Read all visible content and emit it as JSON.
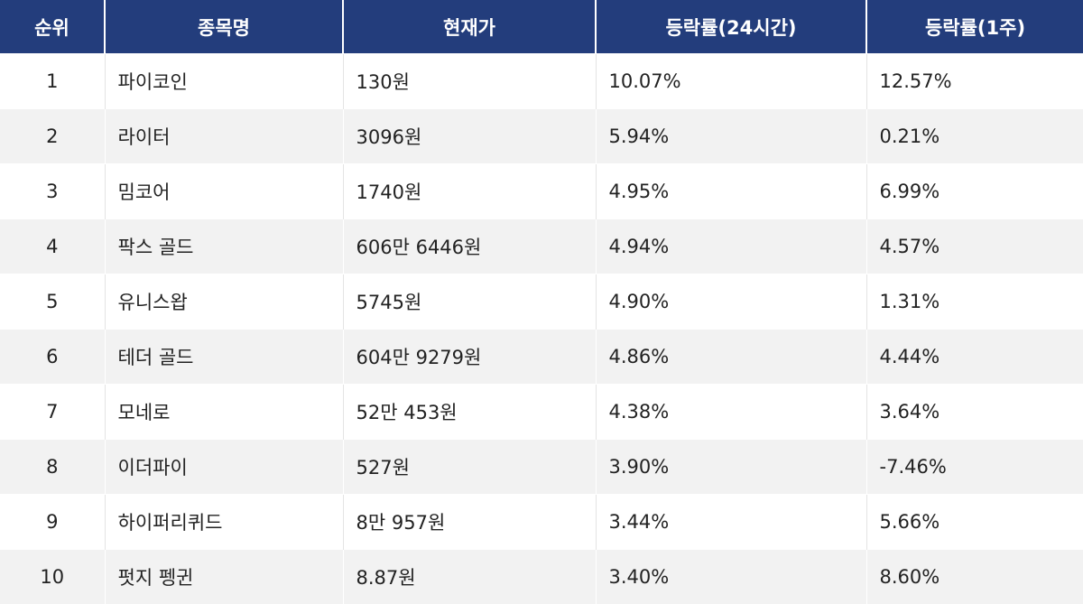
{
  "table": {
    "headers": [
      "순위",
      "종목명",
      "현재가",
      "등락률(24시간)",
      "등락률(1주)"
    ],
    "rows": [
      [
        "1",
        "파이코인",
        "130원",
        "10.07%",
        "12.57%"
      ],
      [
        "2",
        "라이터",
        "3096원",
        "5.94%",
        "0.21%"
      ],
      [
        "3",
        "밈코어",
        "1740원",
        "4.95%",
        "6.99%"
      ],
      [
        "4",
        "팍스 골드",
        "606만 6446원",
        "4.94%",
        "4.57%"
      ],
      [
        "5",
        "유니스왑",
        "5745원",
        "4.90%",
        "1.31%"
      ],
      [
        "6",
        "테더 골드",
        "604만 9279원",
        "4.86%",
        "4.44%"
      ],
      [
        "7",
        "모네로",
        "52만 453원",
        "4.38%",
        "3.64%"
      ],
      [
        "8",
        "이더파이",
        "527원",
        "3.90%",
        "-7.46%"
      ],
      [
        "9",
        "하이퍼리퀴드",
        "8만 957원",
        "3.44%",
        "5.66%"
      ],
      [
        "10",
        "펏지 펭귄",
        "8.87원",
        "3.40%",
        "8.60%"
      ]
    ]
  }
}
